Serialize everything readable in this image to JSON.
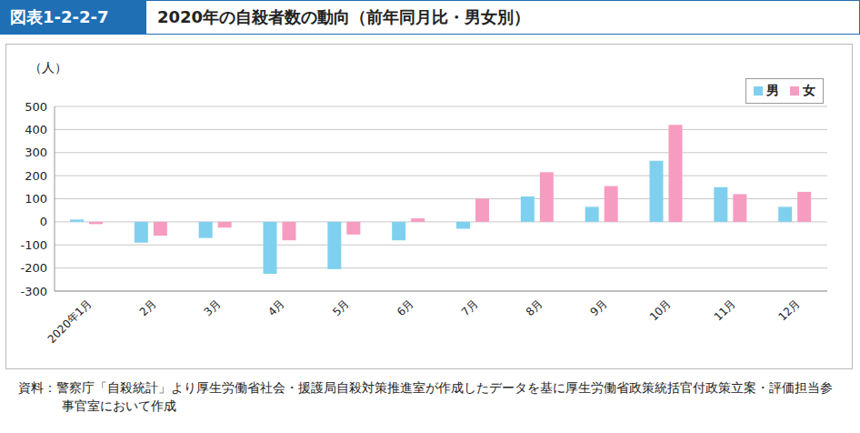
{
  "chart_data": {
    "type": "bar",
    "figure_number": "図表1-2-2-7",
    "title": "2020年の自殺者数の動向（前年同月比・男女別）",
    "y_label": "（人）",
    "categories": [
      "2020年1月",
      "2月",
      "3月",
      "4月",
      "5月",
      "6月",
      "7月",
      "8月",
      "9月",
      "10月",
      "11月",
      "12月"
    ],
    "series": [
      {
        "name": "男",
        "color": "#7fd0ee",
        "values": [
          10,
          -90,
          -70,
          -225,
          -205,
          -80,
          -30,
          110,
          65,
          265,
          150,
          65
        ]
      },
      {
        "name": "女",
        "color": "#f79cc1",
        "values": [
          -10,
          -60,
          -25,
          -80,
          -55,
          15,
          100,
          215,
          155,
          420,
          120,
          130
        ]
      }
    ],
    "ylim": [
      -300,
      500
    ],
    "yticks": [
      -300,
      -200,
      -100,
      0,
      100,
      200,
      300,
      400,
      500
    ],
    "grid": true,
    "legend": "upper right",
    "source": "資料：警察庁「自殺統計」より厚生労働省社会・援護局自殺対策推進室が作成したデータを基に厚生労働省政策統括官付政策立案・評価担当参事官室において作成"
  }
}
